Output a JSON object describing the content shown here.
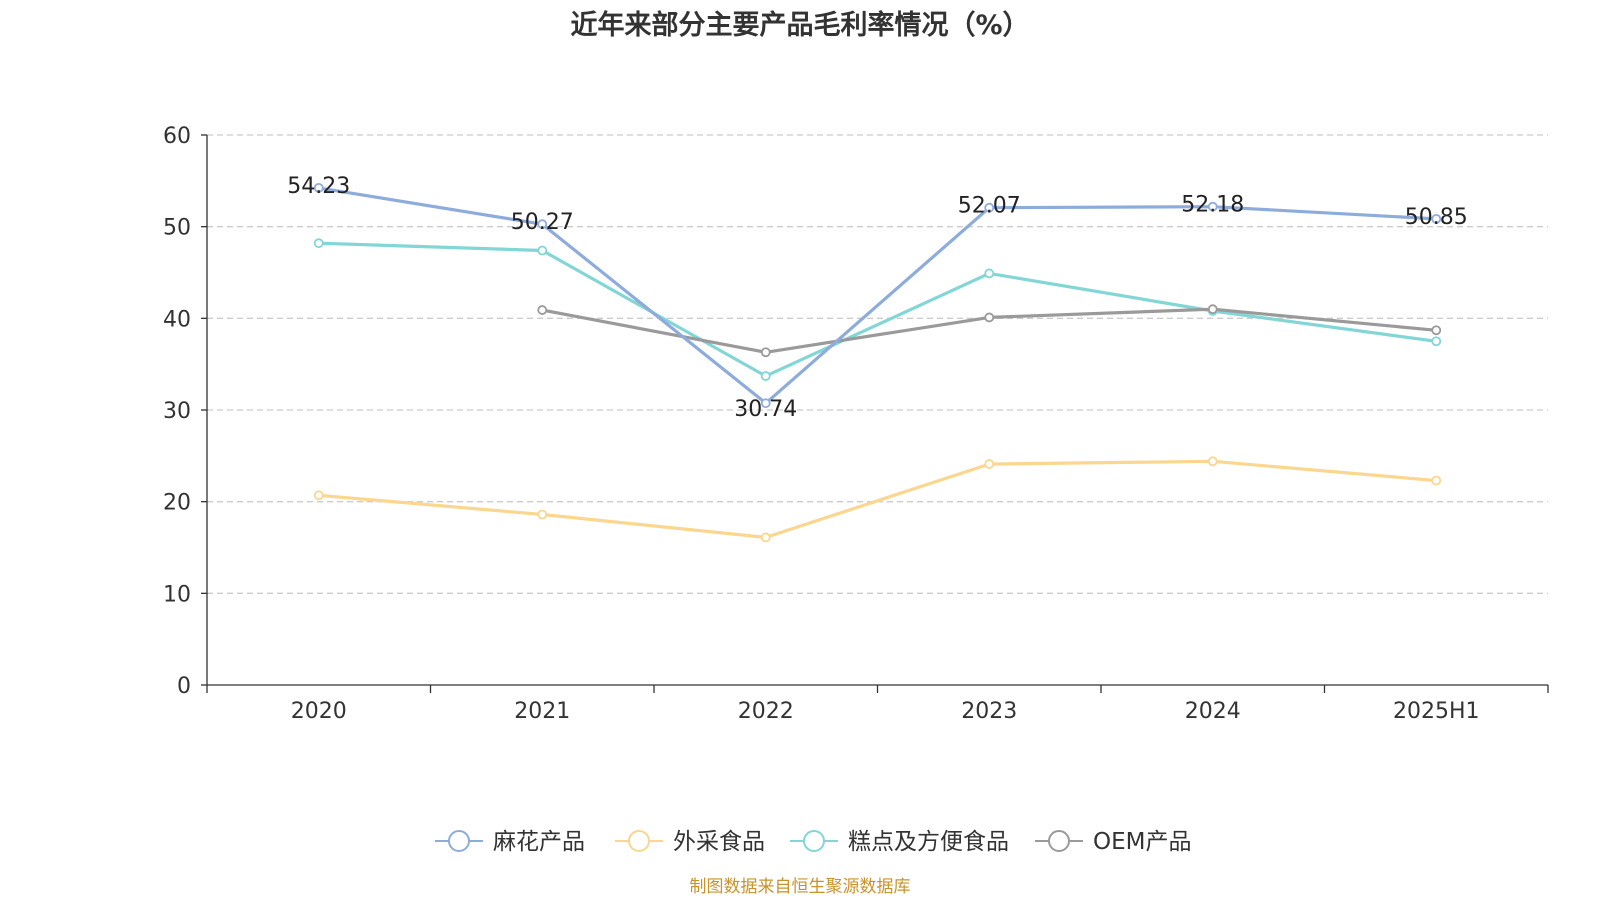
{
  "chart_data": {
    "type": "line",
    "title": "近年来部分主要产品毛利率情况（%）",
    "categories": [
      "2020",
      "2021",
      "2022",
      "2023",
      "2024",
      "2025H1"
    ],
    "ylim": [
      0,
      60
    ],
    "yticks": [
      0,
      10,
      20,
      30,
      40,
      50,
      60
    ],
    "grid": true,
    "legend_position": "bottom",
    "series": [
      {
        "name": "麻花产品",
        "color": "#8eacdb",
        "values": [
          54.23,
          50.27,
          30.74,
          52.07,
          52.18,
          50.85
        ],
        "labels": [
          "54.23",
          "50.27",
          "30.74",
          "52.07",
          "52.18",
          "50.85"
        ]
      },
      {
        "name": "外采食品",
        "color": "#fad68f",
        "values": [
          20.7,
          18.6,
          16.1,
          24.1,
          24.4,
          22.3
        ]
      },
      {
        "name": "糕点及方便食品",
        "color": "#82d6d6",
        "values": [
          48.2,
          47.4,
          33.7,
          44.9,
          40.8,
          37.5
        ]
      },
      {
        "name": "OEM产品",
        "color": "#9a9a9a",
        "values": [
          null,
          40.9,
          36.3,
          40.1,
          41.0,
          38.7
        ]
      }
    ]
  },
  "source": "制图数据来自恒生聚源数据库"
}
